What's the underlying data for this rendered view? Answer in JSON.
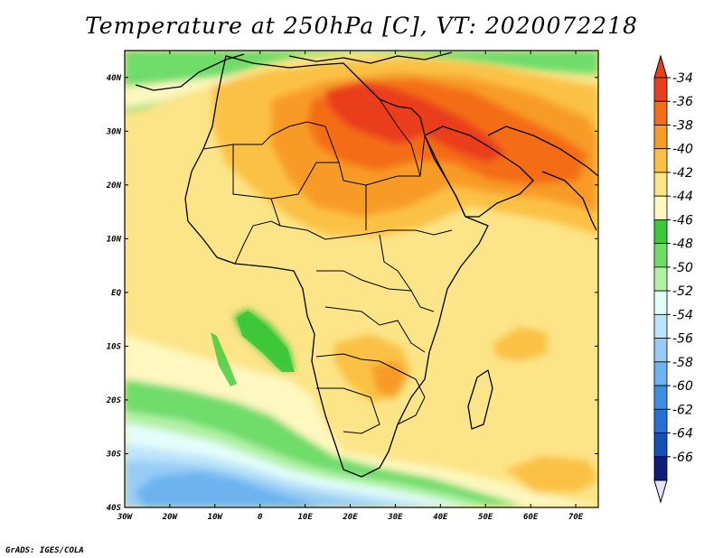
{
  "title": "Temperature at 250hPa [C], VT: 2020072218",
  "footer": "GrADS: IGES/COLA",
  "map": {
    "lon_range": [
      -30,
      75
    ],
    "lat_range": [
      -40,
      45
    ],
    "lat_ticks": [
      {
        "value": 40,
        "label": "40N"
      },
      {
        "value": 30,
        "label": "30N"
      },
      {
        "value": 20,
        "label": "20N"
      },
      {
        "value": 10,
        "label": "10N"
      },
      {
        "value": 0,
        "label": "EQ"
      },
      {
        "value": -10,
        "label": "10S"
      },
      {
        "value": -20,
        "label": "20S"
      },
      {
        "value": -30,
        "label": "30S"
      },
      {
        "value": -40,
        "label": "40S"
      }
    ],
    "lon_ticks": [
      {
        "value": -30,
        "label": "30W"
      },
      {
        "value": -20,
        "label": "20W"
      },
      {
        "value": -10,
        "label": "10W"
      },
      {
        "value": 0,
        "label": "0"
      },
      {
        "value": 10,
        "label": "10E"
      },
      {
        "value": 20,
        "label": "20E"
      },
      {
        "value": 30,
        "label": "30E"
      },
      {
        "value": 40,
        "label": "40E"
      },
      {
        "value": 50,
        "label": "50E"
      },
      {
        "value": 60,
        "label": "60E"
      },
      {
        "value": 70,
        "label": "70E"
      }
    ]
  },
  "colorbar": {
    "labels": [
      "-34",
      "-36",
      "-38",
      "-40",
      "-42",
      "-44",
      "-46",
      "-48",
      "-50",
      "-52",
      "-54",
      "-56",
      "-58",
      "-60",
      "-62",
      "-64",
      "-66"
    ],
    "colors": [
      "#e93e1e",
      "#f46d18",
      "#f89b28",
      "#fbc144",
      "#fce488",
      "#fdf7c0",
      "#3cc83a",
      "#6fdc6a",
      "#b2f0a7",
      "#e3fdfb",
      "#bde4fb",
      "#96ccf6",
      "#6cb3f0",
      "#3f8ee4",
      "#2770d5",
      "#1450b8",
      "#0e1e7a"
    ],
    "top_color": "#e93e1e",
    "bottom_color": "#e3e3f9"
  }
}
